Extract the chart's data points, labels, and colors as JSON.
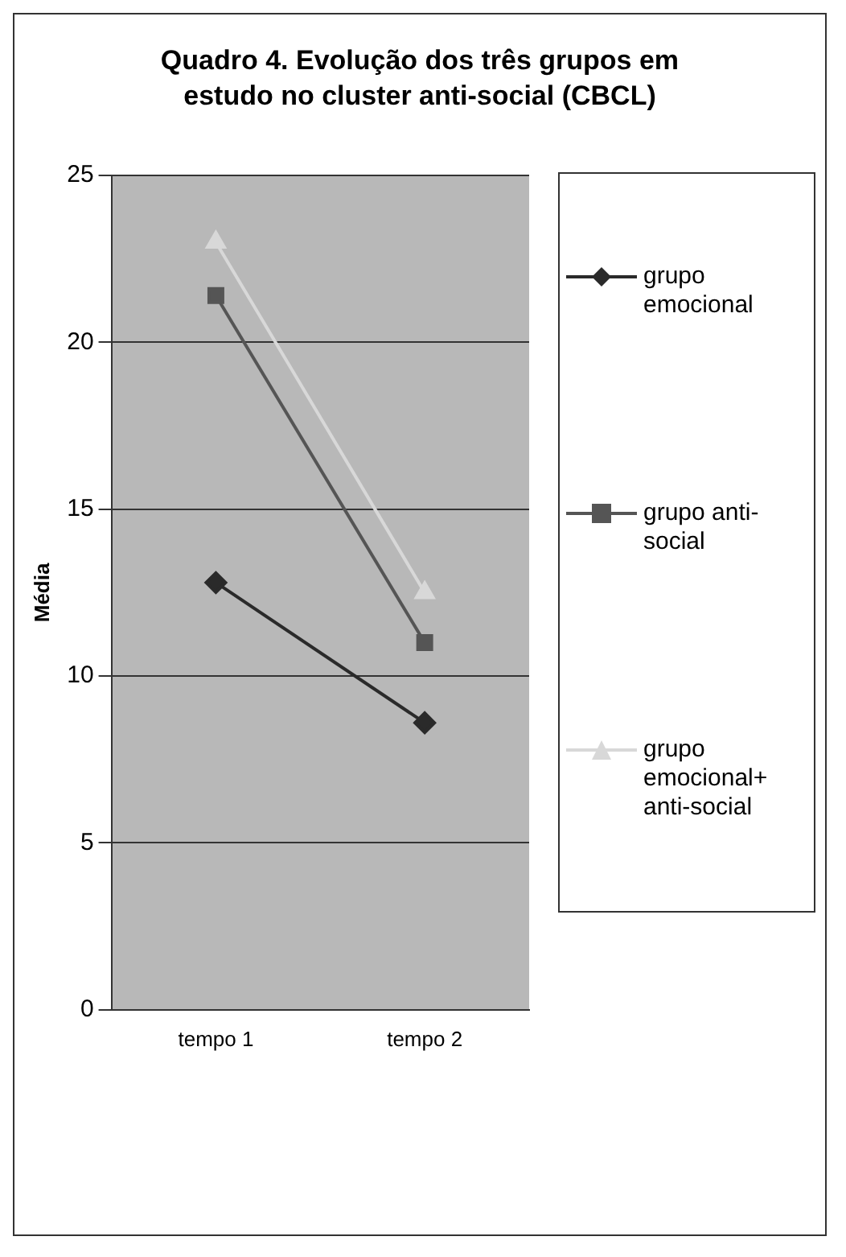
{
  "chart_data": {
    "type": "line",
    "title": "Quadro 4. Evolução dos três grupos em estudo no cluster anti-social (CBCL)",
    "ylabel": "Média",
    "categories": [
      "tempo 1",
      "tempo 2"
    ],
    "ylim": [
      0,
      25
    ],
    "yticks": [
      0,
      5,
      10,
      15,
      20,
      25
    ],
    "grid": "y",
    "legend": "right",
    "line_style": "solid",
    "series": [
      {
        "name": "grupo emocional",
        "color": "#2a2a2a",
        "marker": "diamond",
        "values": [
          12.8,
          8.6
        ]
      },
      {
        "name": "grupo anti-social",
        "color": "#555555",
        "marker": "square",
        "values": [
          21.4,
          11.0
        ]
      },
      {
        "name": "grupo emocional+ anti-social",
        "color": "#d8d8d8",
        "marker": "triangle",
        "values": [
          23.0,
          12.5
        ]
      }
    ]
  }
}
